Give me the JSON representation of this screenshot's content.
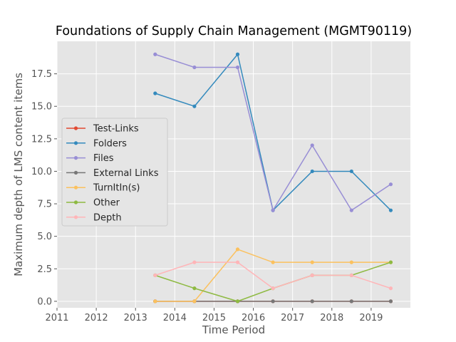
{
  "chart_data": {
    "type": "line",
    "title": "Foundations of Supply Chain Management (MGMT90119)",
    "xlabel": "Time Period",
    "ylabel": "Maximum depth of LMS content items",
    "xlim": [
      2011,
      2020
    ],
    "ylim": [
      -0.5,
      20
    ],
    "xticks": [
      2011,
      2012,
      2013,
      2014,
      2015,
      2016,
      2017,
      2018,
      2019
    ],
    "yticks": [
      0.0,
      2.5,
      5.0,
      7.5,
      10.0,
      12.5,
      15.0,
      17.5
    ],
    "ytick_labels": [
      "0.0",
      "2.5",
      "5.0",
      "7.5",
      "10.0",
      "12.5",
      "15.0",
      "17.5"
    ],
    "grid": true,
    "legend_position": "center-left",
    "x": [
      2013.5,
      2014.5,
      2015.6,
      2016.5,
      2017.5,
      2018.5,
      2019.5
    ],
    "series": [
      {
        "name": "Test-Links",
        "color": "#E24A33",
        "values": [
          0,
          0,
          0,
          0,
          0,
          0,
          0
        ]
      },
      {
        "name": "Folders",
        "color": "#348ABD",
        "values": [
          16,
          15,
          19,
          7,
          10,
          10,
          7
        ]
      },
      {
        "name": "Files",
        "color": "#988ED5",
        "values": [
          19,
          18,
          18,
          7,
          12,
          7,
          9
        ]
      },
      {
        "name": "External Links",
        "color": "#777777",
        "values": [
          0,
          0,
          0,
          0,
          0,
          0,
          0
        ]
      },
      {
        "name": "TurnItIn(s)",
        "color": "#FBC15E",
        "values": [
          0,
          0,
          4,
          3,
          3,
          3,
          3
        ]
      },
      {
        "name": "Other",
        "color": "#8EBA42",
        "values": [
          2,
          1,
          0,
          1,
          2,
          2,
          3
        ]
      },
      {
        "name": "Depth",
        "color": "#FFB5B8",
        "values": [
          2,
          3,
          3,
          1,
          2,
          2,
          1
        ]
      }
    ]
  }
}
